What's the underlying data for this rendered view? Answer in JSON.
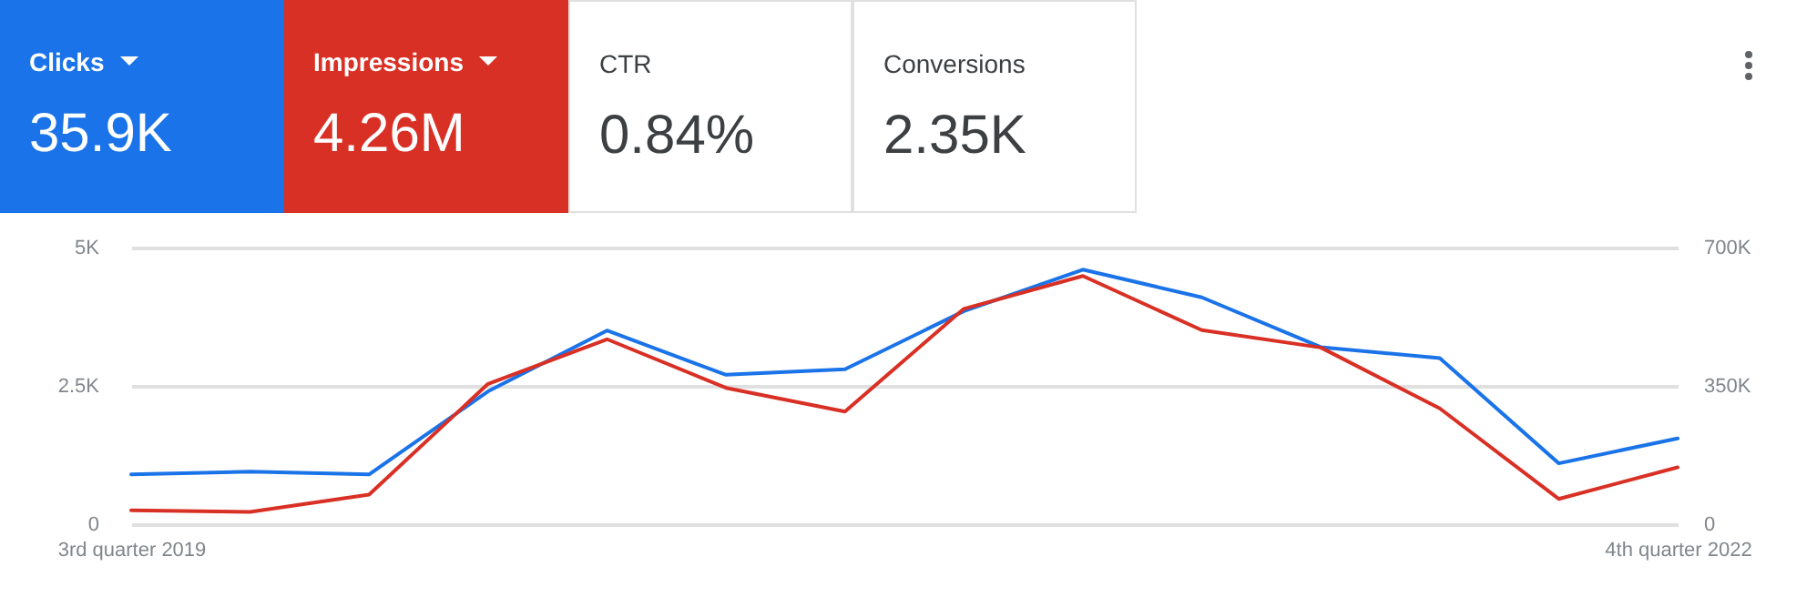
{
  "chart_data": [
    {
      "type": "other",
      "annotations": [
        "Clicks",
        "35.9K",
        "Impressions",
        "4.26M",
        "CTR",
        "0.84%",
        "Conversions",
        "2.35K"
      ],
      "colors": [
        "#1a73e8",
        "#d93025",
        "#ffffff",
        "#ffffff"
      ]
    },
    {
      "type": "line",
      "categories": [
        "3rd quarter 2019",
        null,
        null,
        null,
        null,
        null,
        null,
        null,
        null,
        null,
        null,
        null,
        null,
        "4th quarter 2022"
      ],
      "series": [
        {
          "color": "#1a73e8",
          "values": [
            900,
            950,
            900,
            2400,
            3500,
            2700,
            2800,
            3850,
            4600,
            4100,
            3200,
            3000,
            1100,
            1550
          ]
        },
        {
          "color": "#d93025",
          "axis": "y2",
          "values": [
            35000,
            31000,
            75000,
            355000,
            468000,
            345000,
            285000,
            545000,
            628000,
            491000,
            447000,
            293000,
            64000,
            144000
          ]
        }
      ],
      "ylim": [
        0,
        5000
      ],
      "yticks": [
        0,
        {
          "value": 2500,
          "label": "2.5K"
        },
        {
          "value": 5000,
          "label": "5K"
        }
      ],
      "y2lim": [
        0,
        700000
      ],
      "y2ticks": [
        0,
        {
          "value": 350000,
          "label": "350K"
        },
        {
          "value": 700000,
          "label": "700K"
        }
      ],
      "grid": "y",
      "marker": "none",
      "line_style": "solid"
    }
  ]
}
